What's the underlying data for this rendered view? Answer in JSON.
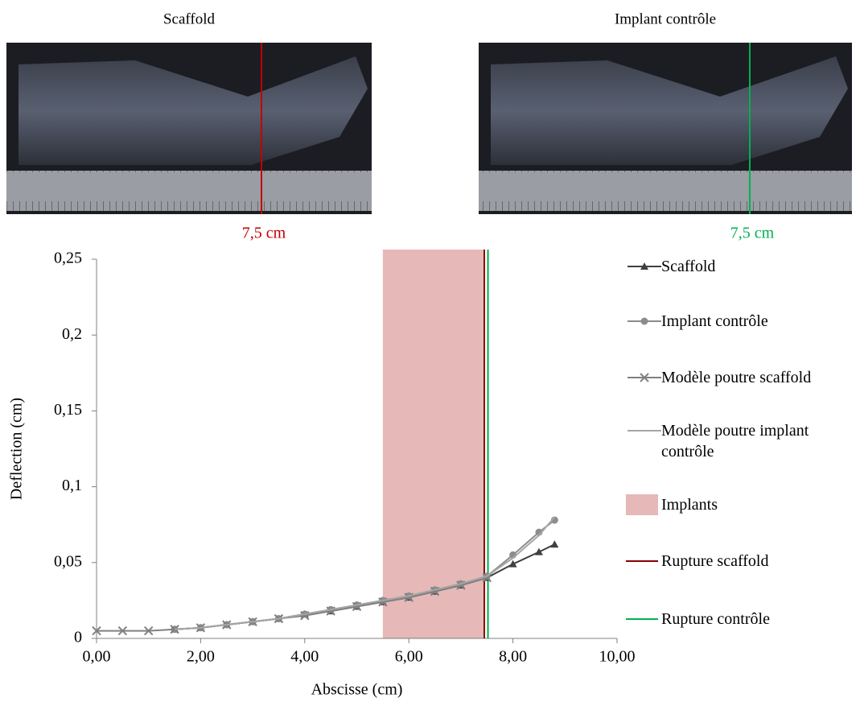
{
  "photos": [
    {
      "title": "Scaffold",
      "marker_label": "7,5 cm",
      "color": "#c00000"
    },
    {
      "title": "Implant contrôle",
      "marker_label": "7,5 cm",
      "color": "#00b050"
    }
  ],
  "chart_data": {
    "type": "line",
    "xlabel": "Abscisse (cm)",
    "ylabel": "Deflection (cm)",
    "xlim": [
      0,
      10
    ],
    "ylim": [
      0,
      0.25
    ],
    "xticks": [
      {
        "value": 0,
        "label": "0,00"
      },
      {
        "value": 2,
        "label": "2,00"
      },
      {
        "value": 4,
        "label": "4,00"
      },
      {
        "value": 6,
        "label": "6,00"
      },
      {
        "value": 8,
        "label": "8,00"
      },
      {
        "value": 10,
        "label": "10,00"
      }
    ],
    "yticks": [
      0,
      {
        "value": 0.05,
        "label": "0,05"
      },
      {
        "value": 0.1,
        "label": "0,1"
      },
      {
        "value": 0.15,
        "label": "0,15"
      },
      {
        "value": 0.2,
        "label": "0,2"
      },
      {
        "value": 0.25,
        "label": "0,25"
      }
    ],
    "grid": false,
    "series": [
      {
        "name": "Scaffold",
        "color": "#404040",
        "marker": "triangle",
        "x": [
          1.5,
          2,
          2.5,
          3,
          3.5,
          4,
          4.5,
          5,
          5.5,
          6,
          6.5,
          7,
          7.5,
          8,
          8.5,
          8.8
        ],
        "values": [
          0.006,
          0.007,
          0.009,
          0.011,
          0.013,
          0.016,
          0.018,
          0.021,
          0.024,
          0.027,
          0.031,
          0.035,
          0.04,
          0.049,
          0.057,
          0.062
        ]
      },
      {
        "name": "Implant contrôle",
        "color": "#8c8c8c",
        "marker": "circle",
        "x": [
          1.5,
          2,
          2.5,
          3,
          3.5,
          4,
          4.5,
          5,
          5.5,
          6,
          6.5,
          7,
          7.5,
          8,
          8.5,
          8.8
        ],
        "values": [
          0.006,
          0.007,
          0.009,
          0.011,
          0.013,
          0.016,
          0.019,
          0.022,
          0.025,
          0.028,
          0.032,
          0.036,
          0.041,
          0.055,
          0.07,
          0.078
        ]
      },
      {
        "name": "Modèle poutre scaffold",
        "color": "#808080",
        "marker": "cross",
        "x": [
          0,
          0.5,
          1,
          1.5,
          2,
          2.5,
          3,
          3.5,
          4,
          4.5,
          5,
          5.5,
          6,
          6.5,
          7,
          7.5
        ],
        "values": [
          0.005,
          0.005,
          0.005,
          0.006,
          0.007,
          0.009,
          0.011,
          0.013,
          0.015,
          0.018,
          0.021,
          0.024,
          0.027,
          0.031,
          0.035,
          0.04
        ]
      },
      {
        "name": "Modèle poutre implant contrôle",
        "color": "#a6a6a6",
        "marker": "none",
        "x": [
          1.5,
          2,
          2.5,
          3,
          3.5,
          4,
          4.5,
          5,
          5.5,
          6,
          6.5,
          7,
          7.5,
          8,
          8.5,
          8.8
        ],
        "values": [
          0.006,
          0.007,
          0.009,
          0.011,
          0.013,
          0.016,
          0.019,
          0.022,
          0.025,
          0.028,
          0.032,
          0.036,
          0.041,
          0.053,
          0.068,
          0.08
        ]
      }
    ],
    "regions": [
      {
        "name": "Implants",
        "color": "#e6b8b7",
        "x": [
          5.5,
          7.45
        ]
      }
    ],
    "vlines": [
      {
        "name": "Rupture scaffold",
        "color": "#8b0000",
        "x": 7.45
      },
      {
        "name": "Rupture contrôle",
        "color": "#00b050",
        "x": 7.52
      }
    ]
  }
}
